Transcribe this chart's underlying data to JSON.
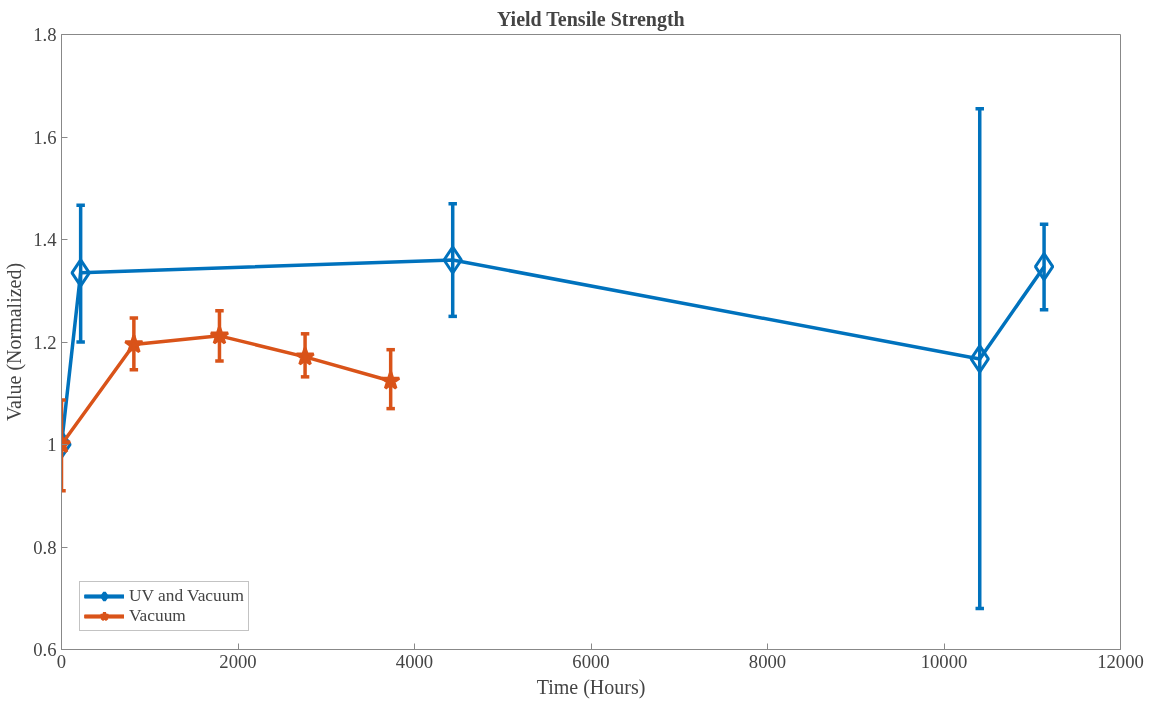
{
  "chart_data": {
    "type": "line",
    "title": "Yield Tensile Strength",
    "xlabel": "Time (Hours)",
    "ylabel": "Value (Normalized)",
    "xlim": [
      0,
      12000
    ],
    "ylim": [
      0.6,
      1.8
    ],
    "xticks": [
      0,
      2000,
      4000,
      6000,
      8000,
      10000,
      12000
    ],
    "yticks": [
      0.6,
      0.8,
      1,
      1.2,
      1.4,
      1.6,
      1.8
    ],
    "grid": false,
    "legend": "bottom left",
    "line_style": "solid",
    "series": [
      {
        "name": "UV and Vacuum",
        "color": "#0072bd",
        "marker": "diamond",
        "x": [
          0,
          217,
          4433,
          10405,
          11134
        ],
        "values": [
          1.0,
          1.335,
          1.36,
          1.167,
          1.347
        ],
        "errors": [
          null,
          [
            1.2,
            1.467
          ],
          [
            1.25,
            1.47
          ],
          [
            0.68,
            1.655
          ],
          [
            1.263,
            1.43
          ]
        ]
      },
      {
        "name": "Vacuum",
        "color": "#d95319",
        "marker": "star",
        "x": [
          0,
          820,
          1790,
          2760,
          3730
        ],
        "values": [
          1.0,
          1.195,
          1.212,
          1.171,
          1.124
        ],
        "errors": [
          [
            0.91,
            1.087
          ],
          [
            1.146,
            1.247
          ],
          [
            1.163,
            1.261
          ],
          [
            1.132,
            1.216
          ],
          [
            1.07,
            1.185
          ]
        ]
      }
    ]
  }
}
